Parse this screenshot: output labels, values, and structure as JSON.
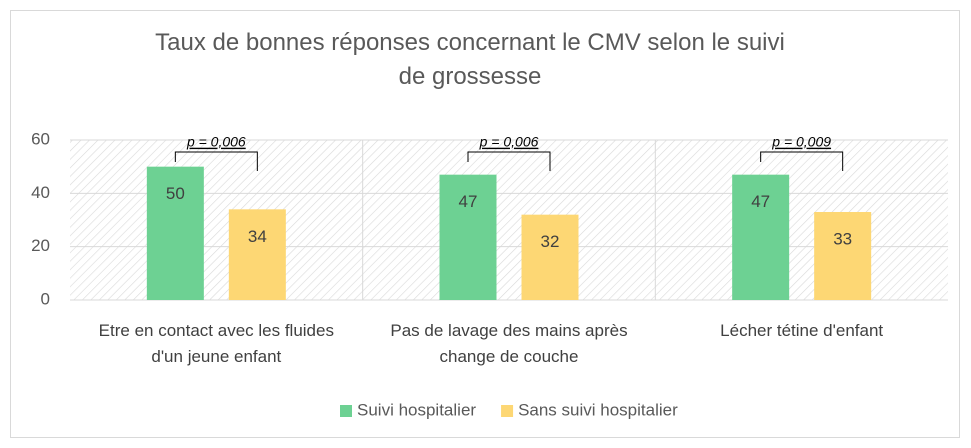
{
  "chart_data": {
    "type": "bar",
    "title": "Taux de bonnes réponses concernant le CMV selon le suivi de grossesse",
    "categories": [
      "Etre en contact avec les fluides d'un jeune enfant",
      "Pas de lavage des mains après change de couche",
      "Lécher tétine d'enfant"
    ],
    "series": [
      {
        "name": "Suivi hospitalier",
        "color": "#6dd193",
        "values": [
          50,
          47,
          47
        ]
      },
      {
        "name": "Sans suivi hospitalier",
        "color": "#fdd774",
        "values": [
          34,
          32,
          33
        ]
      }
    ],
    "annotations": [
      "p = 0,006",
      "p = 0,006",
      "p = 0,009"
    ],
    "ylim": [
      0,
      60
    ],
    "yticks": [
      0,
      20,
      40,
      60
    ],
    "grid": true,
    "legend": "bottom"
  }
}
